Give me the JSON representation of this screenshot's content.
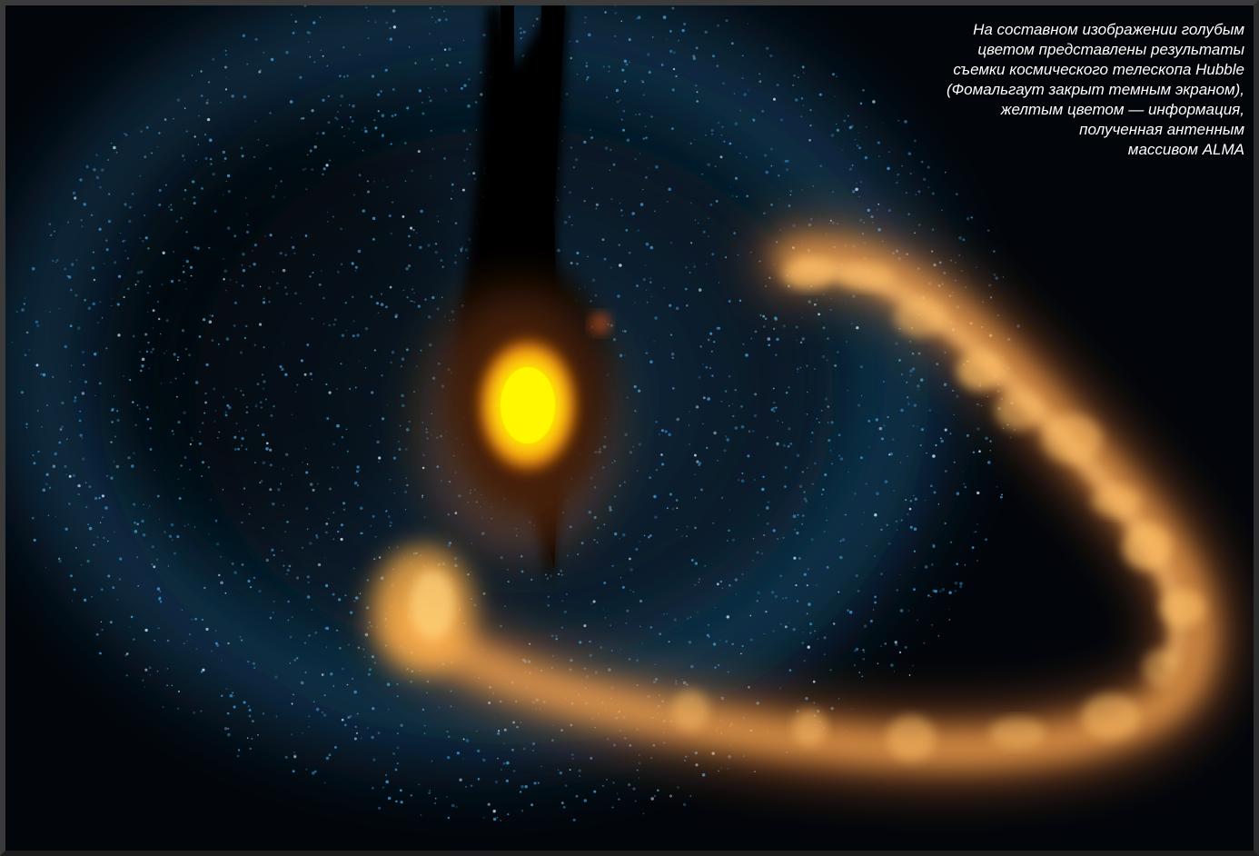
{
  "caption": {
    "lines": [
      "На составном изображении голубым",
      "цветом представлены результаты",
      "съемки космического телескопа Hubble",
      "(Фомальгаут закрыт темным экраном),",
      "желтым цветом — информация,",
      "полученная антенным",
      "массивом ALMA"
    ]
  },
  "colors": {
    "background": "#02050a",
    "hubble_dust": "#3f9ed8",
    "alma_ring": "#f2a24a",
    "alma_core": "#fff200",
    "coronagraph_mask": "#000000",
    "frame_border": "#3a3a3a"
  }
}
